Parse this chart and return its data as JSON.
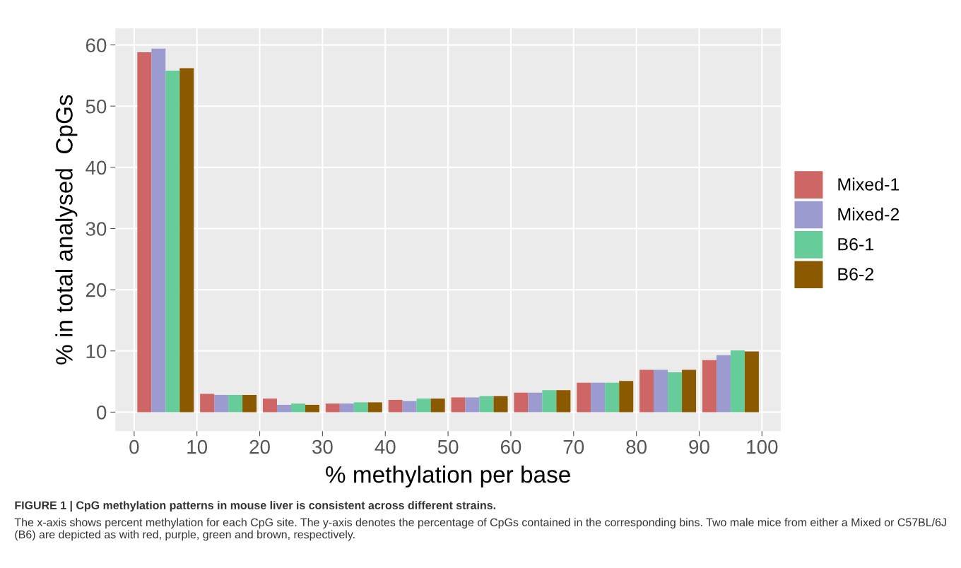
{
  "chart_data": {
    "type": "bar",
    "xlabel": "% methylation per base",
    "ylabel": "% in total analysed  CpGs",
    "x": [
      5,
      15,
      25,
      35,
      45,
      55,
      65,
      75,
      85,
      95
    ],
    "series": [
      {
        "name": "Mixed-1",
        "color": "#cd6664",
        "values": [
          58.8,
          3.0,
          2.2,
          1.4,
          2.0,
          2.4,
          3.2,
          4.8,
          6.9,
          8.5
        ]
      },
      {
        "name": "Mixed-2",
        "color": "#9b9bcf",
        "values": [
          59.4,
          2.8,
          1.2,
          1.4,
          1.8,
          2.4,
          3.2,
          4.8,
          6.9,
          9.3
        ]
      },
      {
        "name": "B6-1",
        "color": "#66cc99",
        "values": [
          55.8,
          2.8,
          1.4,
          1.6,
          2.2,
          2.6,
          3.6,
          4.8,
          6.5,
          10.1
        ]
      },
      {
        "name": "B6-2",
        "color": "#8b5a00",
        "values": [
          56.2,
          2.8,
          1.2,
          1.6,
          2.2,
          2.6,
          3.6,
          5.1,
          6.9,
          9.9
        ]
      }
    ],
    "xlim": [
      -3,
      103
    ],
    "xticks": [
      0,
      10,
      20,
      30,
      40,
      50,
      60,
      70,
      80,
      90,
      100
    ],
    "ylim": [
      -3.1,
      62.7
    ],
    "yticks": [
      0,
      10,
      20,
      30,
      40,
      50,
      60
    ],
    "grid": true,
    "legend": "right",
    "annotations": [
      "FIGURE 1 | CpG methylation patterns in mouse liver is consistent across different strains.",
      "The x-axis shows percent methylation for each CpG site. The y-axis denotes the percentage of CpGs contained in the corresponding bins. Two male mice from either a Mixed or C57BL/6J (B6) are depicted as with red, purple, green and brown, respectively."
    ]
  }
}
